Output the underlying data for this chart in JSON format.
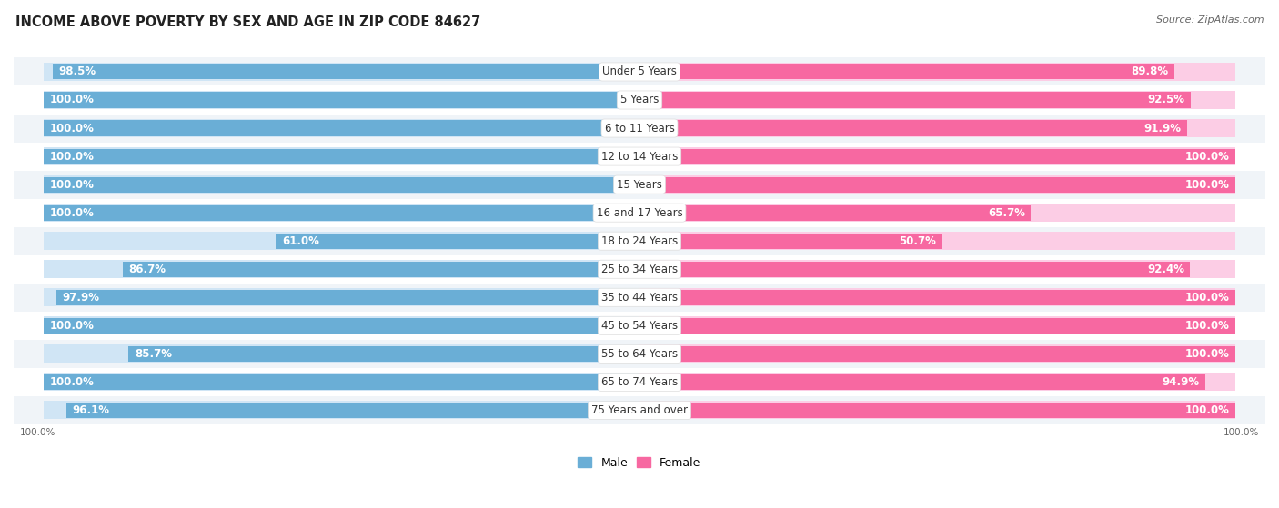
{
  "title": "INCOME ABOVE POVERTY BY SEX AND AGE IN ZIP CODE 84627",
  "source": "Source: ZipAtlas.com",
  "categories": [
    "Under 5 Years",
    "5 Years",
    "6 to 11 Years",
    "12 to 14 Years",
    "15 Years",
    "16 and 17 Years",
    "18 to 24 Years",
    "25 to 34 Years",
    "35 to 44 Years",
    "45 to 54 Years",
    "55 to 64 Years",
    "65 to 74 Years",
    "75 Years and over"
  ],
  "male": [
    98.5,
    100.0,
    100.0,
    100.0,
    100.0,
    100.0,
    61.0,
    86.7,
    97.9,
    100.0,
    85.7,
    100.0,
    96.1
  ],
  "female": [
    89.8,
    92.5,
    91.9,
    100.0,
    100.0,
    65.7,
    50.7,
    92.4,
    100.0,
    100.0,
    100.0,
    94.9,
    100.0
  ],
  "male_color": "#6aaed6",
  "female_color": "#f768a1",
  "male_light_color": "#d0e5f5",
  "female_light_color": "#fccde5",
  "background_color": "#ffffff",
  "row_bg_even": "#f0f4f8",
  "row_bg_odd": "#ffffff",
  "label_fontsize": 8.5,
  "title_fontsize": 10.5,
  "source_fontsize": 8,
  "cat_fontsize": 8.5
}
